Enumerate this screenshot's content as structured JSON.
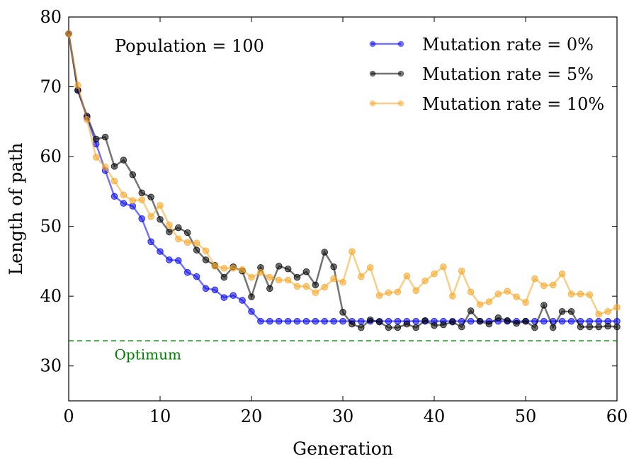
{
  "chart_data": {
    "type": "line",
    "xlabel": "Generation",
    "ylabel": "Length of path",
    "xlim": [
      0,
      60
    ],
    "ylim": [
      25,
      80
    ],
    "xticks": [
      "0",
      "10",
      "20",
      "30",
      "40",
      "50",
      "60"
    ],
    "yticks": [
      "30",
      "40",
      "50",
      "60",
      "70",
      "80"
    ],
    "grid": false,
    "legend_position": "top-right",
    "annotation": "Population = 100",
    "optimum": {
      "label": "Optimum",
      "y": 33.6,
      "color": "#008000"
    },
    "series": [
      {
        "name": "Mutation rate = 0%",
        "color": "#0000ee",
        "x": [
          0,
          1,
          2,
          3,
          4,
          5,
          6,
          7,
          8,
          9,
          10,
          11,
          12,
          13,
          14,
          15,
          16,
          17,
          18,
          19,
          20,
          21,
          22,
          23,
          24,
          25,
          26,
          27,
          28,
          29,
          30,
          31,
          32,
          33,
          34,
          35,
          36,
          37,
          38,
          39,
          40,
          41,
          42,
          43,
          44,
          45,
          46,
          47,
          48,
          49,
          50,
          51,
          52,
          53,
          54,
          55,
          56,
          57,
          58,
          59,
          60
        ],
        "y": [
          77.6,
          69.5,
          65.6,
          61.8,
          58.0,
          54.3,
          53.3,
          52.9,
          51.1,
          47.8,
          46.4,
          45.2,
          45.1,
          43.4,
          42.8,
          41.1,
          40.9,
          39.8,
          40.1,
          39.4,
          37.8,
          36.4,
          36.4,
          36.4,
          36.4,
          36.4,
          36.4,
          36.4,
          36.4,
          36.4,
          36.4,
          36.4,
          36.4,
          36.4,
          36.4,
          36.4,
          36.4,
          36.4,
          36.4,
          36.4,
          36.4,
          36.4,
          36.4,
          36.4,
          36.4,
          36.4,
          36.4,
          36.4,
          36.4,
          36.4,
          36.4,
          36.4,
          36.4,
          36.4,
          36.4,
          36.4,
          36.4,
          36.4,
          36.4,
          36.4,
          36.4
        ]
      },
      {
        "name": "Mutation rate = 5%",
        "color": "#000000",
        "x": [
          0,
          1,
          2,
          3,
          4,
          5,
          6,
          7,
          8,
          9,
          10,
          11,
          12,
          13,
          14,
          15,
          16,
          17,
          18,
          19,
          20,
          21,
          22,
          23,
          24,
          25,
          26,
          27,
          28,
          29,
          30,
          31,
          32,
          33,
          34,
          35,
          36,
          37,
          38,
          39,
          40,
          41,
          42,
          43,
          44,
          45,
          46,
          47,
          48,
          49,
          50,
          51,
          52,
          53,
          54,
          55,
          56,
          57,
          58,
          59,
          60
        ],
        "y": [
          77.6,
          69.5,
          65.8,
          62.5,
          62.8,
          58.6,
          59.5,
          57.4,
          54.8,
          54.2,
          51.0,
          49.2,
          49.8,
          49.1,
          46.6,
          45.2,
          44.4,
          42.7,
          44.2,
          43.6,
          39.9,
          44.1,
          41.1,
          44.3,
          43.9,
          42.7,
          43.5,
          41.6,
          46.3,
          44.2,
          37.7,
          36.0,
          35.5,
          36.6,
          36.3,
          35.5,
          35.5,
          36.0,
          35.5,
          36.5,
          35.8,
          35.9,
          36.3,
          35.6,
          37.9,
          36.4,
          36.0,
          36.9,
          36.5,
          36.1,
          36.4,
          35.5,
          38.7,
          35.5,
          37.8,
          37.8,
          35.6,
          35.6,
          35.6,
          35.7,
          35.6
        ]
      },
      {
        "name": "Mutation rate = 10%",
        "color": "#f5a623",
        "x": [
          0,
          1,
          2,
          3,
          4,
          5,
          6,
          7,
          8,
          9,
          10,
          11,
          12,
          13,
          14,
          15,
          16,
          17,
          18,
          19,
          20,
          21,
          22,
          23,
          24,
          25,
          26,
          27,
          28,
          29,
          30,
          31,
          32,
          33,
          34,
          35,
          36,
          37,
          38,
          39,
          40,
          41,
          42,
          43,
          44,
          45,
          46,
          47,
          48,
          49,
          50,
          51,
          52,
          53,
          54,
          55,
          56,
          57,
          58,
          59,
          60
        ],
        "y": [
          77.6,
          70.2,
          65.3,
          59.9,
          58.5,
          56.5,
          54.5,
          53.7,
          53.8,
          51.4,
          53.0,
          50.2,
          48.2,
          47.7,
          47.6,
          46.5,
          44.3,
          44.0,
          44.0,
          43.8,
          42.7,
          43.4,
          42.7,
          42.3,
          42.3,
          41.4,
          41.4,
          40.5,
          41.3,
          42.5,
          42.0,
          46.4,
          42.8,
          44.1,
          40.1,
          40.5,
          40.6,
          42.9,
          40.8,
          42.2,
          43.2,
          44.2,
          40.0,
          43.6,
          40.6,
          38.8,
          39.2,
          40.3,
          40.7,
          39.9,
          39.1,
          42.5,
          41.5,
          41.6,
          43.2,
          40.3,
          40.3,
          40.2,
          37.4,
          37.8,
          38.4
        ]
      }
    ]
  }
}
